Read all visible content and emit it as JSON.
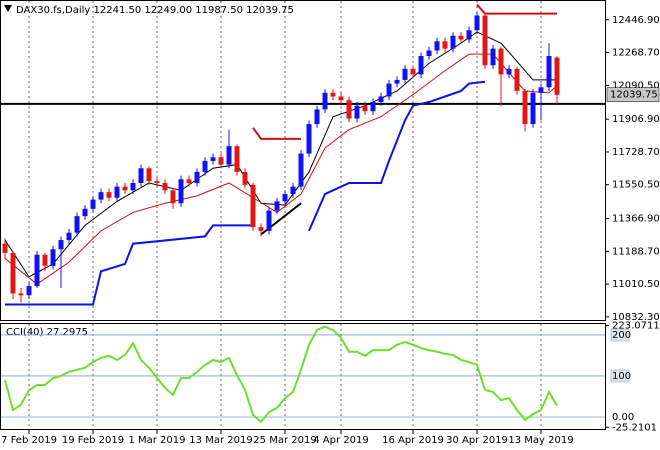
{
  "chart_data": [
    {
      "type": "candlestick",
      "title": "DAX30.fs,Daily  12241.50 12249.00 11987.50 12039.75",
      "categories": [
        null,
        null,
        null,
        "7 Feb 2019",
        null,
        null,
        null,
        null,
        null,
        null,
        null,
        "19 Feb 2019",
        null,
        null,
        null,
        null,
        null,
        null,
        null,
        "1 Mar 2019",
        null,
        null,
        null,
        null,
        null,
        null,
        null,
        "13 Mar 2019",
        null,
        null,
        null,
        null,
        null,
        null,
        null,
        "25 Mar 2019",
        null,
        null,
        null,
        null,
        null,
        null,
        "4 Apr 2019",
        null,
        null,
        null,
        null,
        null,
        null,
        null,
        null,
        "16 Apr 2019",
        null,
        null,
        null,
        null,
        null,
        null,
        null,
        "30 Apr 2019",
        null,
        null,
        null,
        null,
        null,
        null,
        null,
        "13 May 2019",
        null,
        null
      ],
      "open": [
        11230,
        11180,
        10960,
        10950,
        11000,
        11170,
        11110,
        11200,
        11250,
        11290,
        11380,
        11420,
        11470,
        11510,
        11480,
        11540,
        11520,
        11560,
        11640,
        11570,
        11560,
        11520,
        11450,
        11580,
        11560,
        11620,
        11680,
        11700,
        11660,
        11760,
        11620,
        11550,
        11320,
        11300,
        11410,
        11460,
        11500,
        11540,
        11720,
        11880,
        11960,
        12050,
        12030,
        12010,
        11910,
        11980,
        11950,
        12000,
        12030,
        12100,
        12120,
        12180,
        12150,
        12250,
        12280,
        12330,
        12290,
        12360,
        12340,
        12390,
        12470,
        12200,
        12290,
        12150,
        12180,
        12060,
        11880,
        12050,
        12080,
        12241.5
      ],
      "high": [
        11260,
        11190,
        10990,
        11020,
        11190,
        11180,
        11220,
        11270,
        11310,
        11400,
        11440,
        11490,
        11530,
        11530,
        11560,
        11560,
        11580,
        11660,
        11650,
        11600,
        11580,
        11530,
        11600,
        11600,
        11640,
        11700,
        11720,
        11720,
        11850,
        11770,
        11640,
        11560,
        11340,
        11430,
        11480,
        11520,
        11560,
        11740,
        11900,
        11980,
        12070,
        12070,
        12050,
        12030,
        12000,
        12000,
        12020,
        12050,
        12120,
        12140,
        12200,
        12200,
        12270,
        12300,
        12350,
        12350,
        12380,
        12380,
        12410,
        12490,
        12480,
        12310,
        12300,
        12200,
        12190,
        12070,
        12070,
        12100,
        12320,
        12249
      ],
      "low": [
        11150,
        10930,
        10910,
        10930,
        10990,
        11080,
        11090,
        10990,
        11230,
        11270,
        11360,
        11400,
        11450,
        11460,
        11460,
        11500,
        11500,
        11540,
        11550,
        11540,
        11500,
        11420,
        11430,
        11540,
        11540,
        11600,
        11660,
        11640,
        11640,
        11600,
        11530,
        11300,
        11270,
        11280,
        11390,
        11440,
        11480,
        11520,
        11700,
        11860,
        11940,
        12010,
        11990,
        11890,
        11890,
        11930,
        11930,
        11980,
        12010,
        12080,
        12100,
        12130,
        12130,
        12230,
        12260,
        12270,
        12270,
        12320,
        12320,
        12370,
        12180,
        12180,
        11980,
        12130,
        12040,
        11840,
        11860,
        11900,
        12060,
        11987.5
      ],
      "close": [
        11180,
        10960,
        10950,
        11000,
        11170,
        11110,
        11200,
        11250,
        11290,
        11380,
        11420,
        11470,
        11510,
        11480,
        11540,
        11520,
        11560,
        11640,
        11570,
        11560,
        11520,
        11450,
        11580,
        11560,
        11620,
        11680,
        11700,
        11660,
        11760,
        11620,
        11550,
        11320,
        11300,
        11410,
        11460,
        11500,
        11540,
        11720,
        11880,
        11960,
        12050,
        12030,
        12010,
        11910,
        11980,
        11950,
        12000,
        12030,
        12100,
        12120,
        12180,
        12150,
        12250,
        12280,
        12330,
        12290,
        12360,
        12340,
        12390,
        12470,
        12200,
        12290,
        12150,
        12180,
        12060,
        11880,
        12050,
        12080,
        12250,
        12039.75
      ],
      "up_color": "#1010f0",
      "down_color": "#e01818",
      "lines": [
        {
          "color": "#000000",
          "width": 1,
          "x": [
            0,
            3,
            6,
            10,
            14,
            18,
            22,
            26,
            29,
            32,
            35,
            38,
            41,
            45,
            49,
            53,
            57,
            59,
            62,
            66,
            69
          ],
          "values": [
            11250,
            11050,
            11120,
            11330,
            11460,
            11560,
            11520,
            11640,
            11660,
            11450,
            11440,
            11620,
            11920,
            11980,
            12060,
            12210,
            12320,
            12380,
            12320,
            12120,
            12120
          ]
        },
        {
          "color": "#d01010",
          "width": 1,
          "x": [
            0,
            4,
            8,
            12,
            16,
            20,
            24,
            28,
            31,
            34,
            37,
            40,
            43,
            47,
            51,
            55,
            58,
            61,
            65,
            68,
            69
          ],
          "values": [
            11150,
            11010,
            11130,
            11300,
            11400,
            11450,
            11490,
            11560,
            11480,
            11400,
            11500,
            11750,
            11850,
            11920,
            12040,
            12170,
            12260,
            12260,
            12060,
            12050,
            12090
          ]
        },
        {
          "color": "#0a14e6",
          "width": 2,
          "x": [
            0,
            11,
            12,
            15,
            16,
            25,
            26,
            31,
            32,
            38,
            40,
            43,
            47,
            48,
            50,
            51,
            53,
            55,
            57,
            58,
            60
          ],
          "values": [
            10900,
            10900,
            11080,
            11120,
            11230,
            11270,
            11330,
            11330,
            null,
            11300,
            11500,
            11560,
            11560,
            11680,
            11900,
            11980,
            12000,
            12030,
            12060,
            12100,
            12110
          ]
        },
        {
          "color": "#d01010",
          "width": 2,
          "x": [
            31,
            32,
            37,
            38,
            59,
            60,
            69
          ],
          "values": [
            11860,
            11800,
            11800,
            null,
            12530,
            12480,
            12480
          ]
        },
        {
          "color": "#000000",
          "width": 2,
          "x": [
            32,
            37
          ],
          "values": [
            11280,
            11450
          ]
        }
      ],
      "horizontal_line": 11990,
      "ylim": [
        10821,
        12538
      ],
      "yticks": [
        {
          "value": 12446.9,
          "label": "12446.90"
        },
        {
          "value": 12268.7,
          "label": "12268.70"
        },
        {
          "value": 12090.5,
          "label": "12090.50"
        },
        {
          "value": 11906.9,
          "label": "11906.90"
        },
        {
          "value": 11728.7,
          "label": "11728.70"
        },
        {
          "value": 11550.5,
          "label": "11550.50"
        },
        {
          "value": 11366.9,
          "label": "11366.90"
        },
        {
          "value": 11188.7,
          "label": "11188.70"
        },
        {
          "value": 11010.5,
          "label": "11010.50"
        },
        {
          "value": 10832.3,
          "label": "10832.30"
        }
      ]
    },
    {
      "type": "line",
      "title": "CCI(40) 27.2975",
      "color": "#6ee02a",
      "values": [
        90,
        17,
        30,
        65,
        78,
        78,
        95,
        100,
        110,
        115,
        120,
        134,
        144,
        149,
        139,
        151,
        180,
        139,
        120,
        95,
        71,
        54,
        95,
        95,
        110,
        127,
        139,
        134,
        144,
        102,
        66,
        5,
        -12,
        12,
        22,
        46,
        61,
        115,
        176,
        212,
        220,
        212,
        193,
        159,
        159,
        149,
        163,
        163,
        163,
        176,
        183,
        176,
        168,
        163,
        159,
        154,
        151,
        139,
        134,
        127,
        66,
        61,
        41,
        46,
        17,
        -7,
        7,
        17,
        61,
        27.2975
      ],
      "ylim": [
        -25.2101,
        223.0711
      ],
      "yticks": [
        -25.2101,
        {
          "value": 0,
          "label": "0.00"
        },
        100,
        200,
        223.0711
      ]
    }
  ]
}
